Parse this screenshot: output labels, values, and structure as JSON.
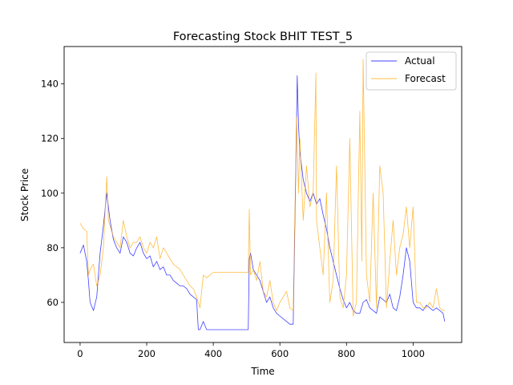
{
  "chart_data": {
    "type": "line",
    "title": "Forecasting Stock BHIT TEST_5",
    "xlabel": "Time",
    "ylabel": "Stock Price",
    "xlim": [
      -48,
      1146
    ],
    "ylim": [
      45.3,
      153.7
    ],
    "xticks": [
      0,
      200,
      400,
      600,
      800,
      1000
    ],
    "yticks": [
      60,
      80,
      100,
      120,
      140
    ],
    "grid": false,
    "legend_position": "top-right",
    "series": [
      {
        "name": "Actual",
        "color": "#0000ff",
        "x": [
          0,
          10,
          20,
          25,
          30,
          40,
          50,
          60,
          70,
          80,
          85,
          90,
          100,
          110,
          120,
          130,
          140,
          150,
          160,
          170,
          180,
          190,
          200,
          210,
          220,
          230,
          240,
          250,
          260,
          270,
          280,
          290,
          300,
          310,
          320,
          330,
          340,
          350,
          355,
          360,
          370,
          380,
          390,
          400,
          450,
          505,
          508,
          512,
          520,
          530,
          540,
          550,
          560,
          570,
          580,
          590,
          600,
          610,
          620,
          630,
          640,
          648,
          652,
          656,
          660,
          665,
          670,
          680,
          690,
          700,
          710,
          720,
          730,
          740,
          750,
          760,
          770,
          780,
          790,
          800,
          810,
          820,
          830,
          840,
          850,
          860,
          870,
          880,
          890,
          900,
          910,
          920,
          930,
          940,
          950,
          960,
          970,
          980,
          990,
          1000,
          1010,
          1020,
          1030,
          1040,
          1050,
          1060,
          1070,
          1080,
          1090,
          1095
        ],
        "y": [
          78,
          81,
          75,
          68,
          60,
          57,
          62,
          78,
          88,
          100,
          95,
          90,
          83,
          80,
          78,
          84,
          82,
          78,
          77,
          80,
          82,
          78,
          76,
          77,
          73,
          75,
          72,
          73,
          70,
          70,
          68,
          67,
          66,
          66,
          65,
          63,
          62,
          61,
          50,
          50,
          53,
          50,
          50,
          50,
          50,
          50,
          76,
          78,
          72,
          70,
          68,
          64,
          60,
          62,
          58,
          56,
          55,
          54,
          53,
          52,
          52,
          110,
          143,
          125,
          115,
          110,
          105,
          100,
          97,
          100,
          96,
          98,
          92,
          87,
          80,
          75,
          70,
          65,
          61,
          58,
          60,
          57,
          56,
          56,
          60,
          61,
          58,
          57,
          56,
          62,
          61,
          60,
          63,
          58,
          57,
          62,
          70,
          80,
          75,
          60,
          58,
          58,
          57,
          59,
          58,
          57,
          58,
          57,
          56,
          53
        ]
      },
      {
        "name": "Forecast",
        "color": "#ffa500",
        "x": [
          0,
          10,
          20,
          25,
          30,
          40,
          50,
          60,
          70,
          80,
          85,
          90,
          100,
          110,
          120,
          130,
          140,
          150,
          160,
          170,
          180,
          190,
          200,
          210,
          220,
          230,
          240,
          250,
          260,
          270,
          280,
          290,
          300,
          310,
          320,
          330,
          340,
          350,
          360,
          370,
          380,
          390,
          400,
          450,
          505,
          508,
          512,
          520,
          530,
          540,
          550,
          560,
          570,
          580,
          590,
          600,
          610,
          620,
          630,
          640,
          650,
          656,
          660,
          665,
          670,
          680,
          690,
          700,
          708,
          710,
          720,
          730,
          740,
          750,
          760,
          770,
          780,
          790,
          800,
          810,
          820,
          830,
          840,
          846,
          850,
          860,
          870,
          880,
          890,
          900,
          910,
          920,
          930,
          940,
          950,
          960,
          970,
          980,
          990,
          1000,
          1010,
          1020,
          1030,
          1040,
          1050,
          1060,
          1070,
          1080,
          1090,
          1095
        ],
        "y": [
          89,
          87,
          86,
          70,
          72,
          74,
          66,
          70,
          80,
          106,
          90,
          88,
          84,
          82,
          80,
          90,
          84,
          80,
          82,
          82,
          84,
          80,
          78,
          82,
          80,
          84,
          76,
          80,
          78,
          76,
          74,
          73,
          72,
          70,
          68,
          66,
          65,
          62,
          58,
          70,
          69,
          70,
          71,
          71,
          71,
          94,
          70,
          72,
          68,
          75,
          64,
          62,
          68,
          60,
          57,
          60,
          62,
          64,
          58,
          57,
          128,
          100,
          120,
          105,
          90,
          110,
          95,
          100,
          144,
          90,
          80,
          70,
          100,
          60,
          68,
          110,
          62,
          58,
          70,
          120,
          55,
          60,
          130,
          75,
          149,
          70,
          60,
          100,
          58,
          110,
          100,
          58,
          75,
          90,
          70,
          80,
          85,
          95,
          80,
          95,
          60,
          60,
          58,
          58,
          60,
          58,
          65,
          58,
          57,
          57
        ]
      }
    ]
  }
}
